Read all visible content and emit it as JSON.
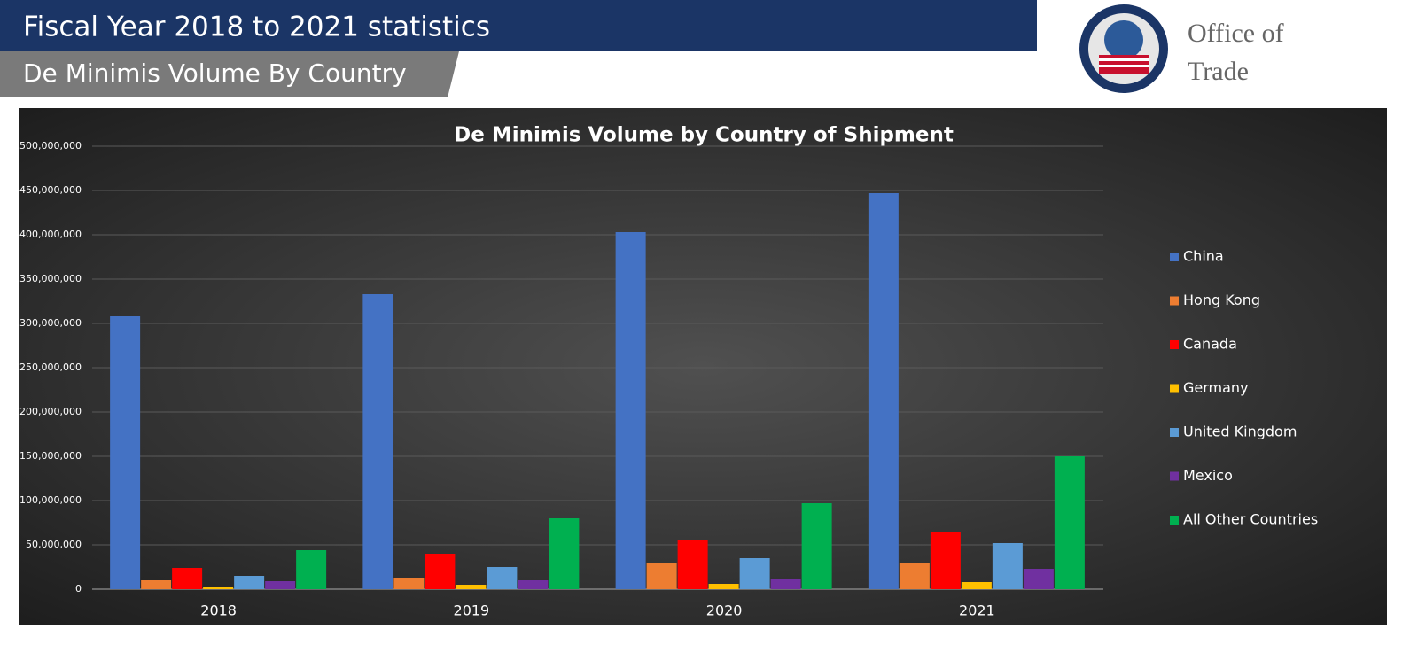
{
  "header": {
    "title": "Fiscal Year 2018 to 2021 statistics",
    "subtitle": "De Minimis Volume By Country",
    "office_line1": "Office of",
    "office_line2": "Trade"
  },
  "chart_data": {
    "type": "bar",
    "title": "De Minimis Volume by Country of Shipment",
    "categories": [
      "2018",
      "2019",
      "2020",
      "2021"
    ],
    "series": [
      {
        "name": "China",
        "color": "#4472c4",
        "values": [
          308000000,
          333000000,
          403000000,
          447000000
        ]
      },
      {
        "name": "Hong Kong",
        "color": "#ed7d31",
        "values": [
          10000000,
          13000000,
          30000000,
          29000000
        ]
      },
      {
        "name": "Canada",
        "color": "#ff0000",
        "values": [
          24000000,
          40000000,
          55000000,
          65000000
        ]
      },
      {
        "name": "Germany",
        "color": "#ffc000",
        "values": [
          3000000,
          5000000,
          6000000,
          8000000
        ]
      },
      {
        "name": "United Kingdom",
        "color": "#5b9bd5",
        "values": [
          15000000,
          25000000,
          35000000,
          52000000
        ]
      },
      {
        "name": "Mexico",
        "color": "#7030a0",
        "values": [
          9000000,
          10000000,
          12000000,
          23000000
        ]
      },
      {
        "name": "All Other Countries",
        "color": "#00b050",
        "values": [
          44000000,
          80000000,
          97000000,
          150000000
        ]
      }
    ],
    "ylim": [
      0,
      500000000
    ],
    "yticks": [
      0,
      {
        "value": 50000000,
        "label": "50,000,000"
      },
      {
        "value": 100000000,
        "label": "100,000,000"
      },
      {
        "value": 150000000,
        "label": "150,000,000"
      },
      {
        "value": 200000000,
        "label": "200,000,000"
      },
      {
        "value": 250000000,
        "label": "250,000,000"
      },
      {
        "value": 300000000,
        "label": "300,000,000"
      },
      {
        "value": 350000000,
        "label": "350,000,000"
      },
      {
        "value": 400000000,
        "label": "400,000,000"
      },
      {
        "value": 450000000,
        "label": "450,000,000"
      },
      {
        "value": 500000000,
        "label": "500,000,000"
      }
    ],
    "grid": true,
    "legend": "right"
  }
}
